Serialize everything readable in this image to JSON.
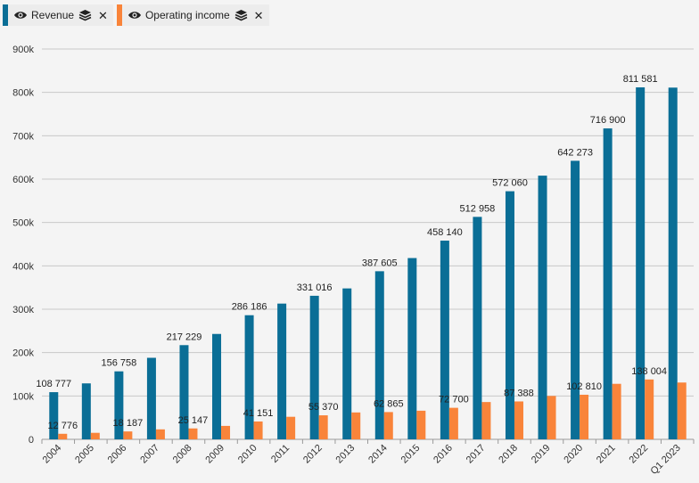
{
  "legend": {
    "items": [
      {
        "label": "Revenue",
        "color": "#0a6e96"
      },
      {
        "label": "Operating income",
        "color": "#f9843a"
      }
    ]
  },
  "chart_data": {
    "type": "bar",
    "categories": [
      "2004",
      "2005",
      "2006",
      "2007",
      "2008",
      "2009",
      "2010",
      "2011",
      "2012",
      "2013",
      "2014",
      "2015",
      "2016",
      "2017",
      "2018",
      "2019",
      "2020",
      "2021",
      "2022",
      "Q1 2023"
    ],
    "series": [
      {
        "name": "Revenue",
        "color": "#0a6e96",
        "values": [
          108777,
          129000,
          156758,
          188000,
          217229,
          243000,
          286186,
          313000,
          331016,
          348000,
          387605,
          418000,
          458140,
          512958,
          572060,
          608000,
          642273,
          716900,
          811581,
          811000
        ],
        "labels": [
          "108 777",
          "",
          "156 758",
          "",
          "217 229",
          "",
          "286 186",
          "",
          "331 016",
          "",
          "387 605",
          "",
          "458 140",
          "512 958",
          "572 060",
          "",
          "642 273",
          "716 900",
          "811 581",
          ""
        ]
      },
      {
        "name": "Operating income",
        "color": "#f9843a",
        "values": [
          12776,
          15000,
          18187,
          23000,
          25147,
          31000,
          41151,
          52000,
          55370,
          62000,
          62865,
          66000,
          72700,
          86000,
          87388,
          100000,
          102810,
          128000,
          138004,
          131000
        ],
        "labels": [
          "12 776",
          "",
          "18 187",
          "",
          "25 147",
          "",
          "41 151",
          "",
          "55 370",
          "",
          "62 865",
          "",
          "72 700",
          "",
          "87 388",
          "",
          "102 810",
          "",
          "138 004",
          ""
        ]
      }
    ],
    "ylim": [
      0,
      900000
    ],
    "yticks": [
      "0",
      "100k",
      "200k",
      "300k",
      "400k",
      "500k",
      "600k",
      "700k",
      "800k",
      "900k"
    ],
    "grid": true,
    "legend_position": "top-left"
  }
}
